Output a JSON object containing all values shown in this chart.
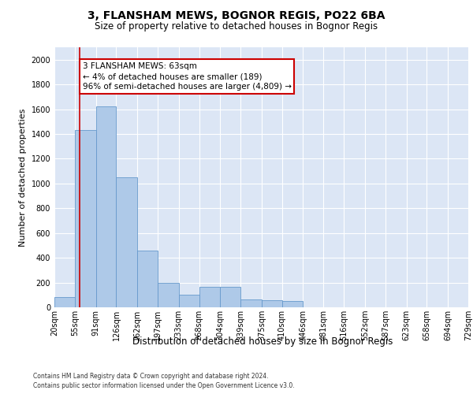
{
  "title1": "3, FLANSHAM MEWS, BOGNOR REGIS, PO22 6BA",
  "title2": "Size of property relative to detached houses in Bognor Regis",
  "xlabel": "Distribution of detached houses by size in Bognor Regis",
  "ylabel": "Number of detached properties",
  "footer1": "Contains HM Land Registry data © Crown copyright and database right 2024.",
  "footer2": "Contains public sector information licensed under the Open Government Licence v3.0.",
  "bar_color": "#aec9e8",
  "bar_edge_color": "#6699cc",
  "bg_color": "#dce6f5",
  "annotation_box_color": "#cc0000",
  "annotation_text_line1": "3 FLANSHAM MEWS: 63sqm",
  "annotation_text_line2": "← 4% of detached houses are smaller (189)",
  "annotation_text_line3": "96% of semi-detached houses are larger (4,809) →",
  "property_line_x": 63,
  "bins": [
    20,
    55,
    91,
    126,
    162,
    197,
    233,
    268,
    304,
    339,
    375,
    410,
    446,
    481,
    516,
    552,
    587,
    623,
    658,
    694,
    729
  ],
  "counts": [
    80,
    1430,
    1620,
    1050,
    460,
    195,
    100,
    165,
    165,
    65,
    60,
    50,
    0,
    0,
    0,
    0,
    0,
    0,
    0,
    0
  ],
  "ylim": [
    0,
    2100
  ],
  "yticks": [
    0,
    200,
    400,
    600,
    800,
    1000,
    1200,
    1400,
    1600,
    1800,
    2000
  ],
  "grid_color": "#ffffff",
  "title1_fontsize": 10,
  "title2_fontsize": 8.5,
  "ylabel_fontsize": 8,
  "xlabel_fontsize": 8.5,
  "tick_fontsize": 7,
  "footer_fontsize": 5.5,
  "annotation_fontsize": 7.5
}
